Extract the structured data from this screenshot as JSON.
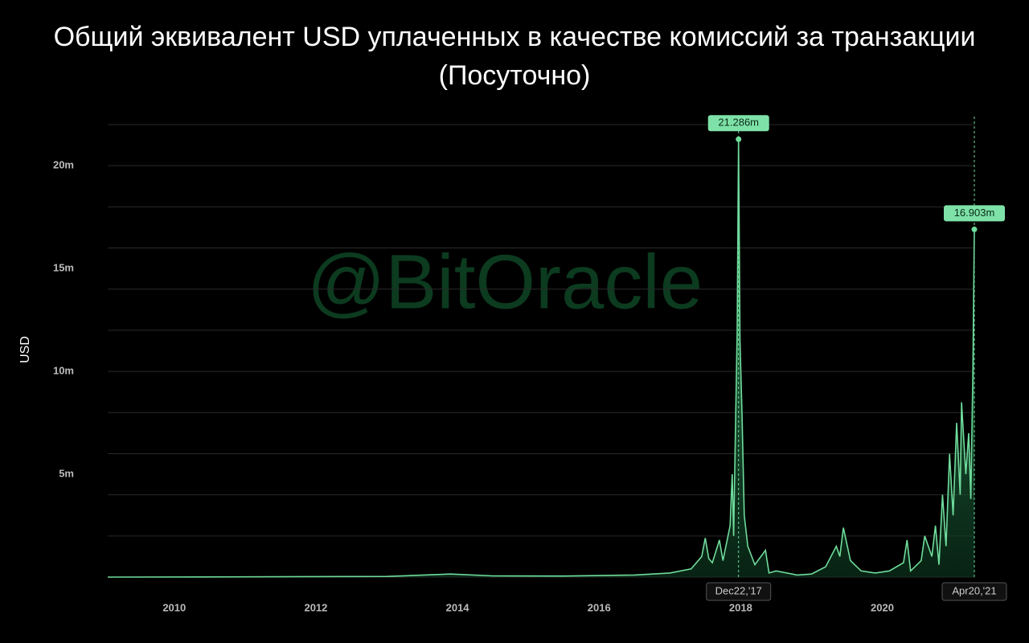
{
  "chart_data": {
    "type": "area",
    "title": "Общий эквивалент USD уплаченных в качестве комиссий за транзакции",
    "subtitle": "(Посуточно)",
    "y_label": "USD",
    "watermark": "@BitOracle",
    "xlim": [
      2009.06,
      2021.3
    ],
    "xticks": [
      2010,
      2012,
      2014,
      2016,
      2018,
      2020
    ],
    "ylim": [
      0,
      22000000
    ],
    "yticks": [
      {
        "value": 5000000,
        "label": "5m"
      },
      {
        "value": 10000000,
        "label": "10m"
      },
      {
        "value": 15000000,
        "label": "15m"
      },
      {
        "value": 20000000,
        "label": "20m"
      }
    ],
    "ygrid": [
      0,
      2000000,
      4000000,
      6000000,
      8000000,
      10000000,
      12000000,
      14000000,
      16000000,
      18000000,
      20000000,
      22000000
    ],
    "color": "#6fdc9c",
    "x": [
      2009.06,
      2011,
      2013,
      2013.9,
      2014.5,
      2015.5,
      2016.5,
      2017.0,
      2017.3,
      2017.45,
      2017.5,
      2017.55,
      2017.6,
      2017.7,
      2017.75,
      2017.85,
      2017.88,
      2017.9,
      2017.93,
      2017.95,
      2017.97,
      2017.99,
      2018.02,
      2018.05,
      2018.1,
      2018.2,
      2018.35,
      2018.4,
      2018.5,
      2018.8,
      2019.0,
      2019.2,
      2019.35,
      2019.4,
      2019.45,
      2019.55,
      2019.7,
      2019.9,
      2020.1,
      2020.3,
      2020.35,
      2020.4,
      2020.55,
      2020.6,
      2020.7,
      2020.75,
      2020.8,
      2020.85,
      2020.9,
      2020.95,
      2021.0,
      2021.05,
      2021.1,
      2021.12,
      2021.18,
      2021.22,
      2021.25,
      2021.28,
      2021.3
    ],
    "values": [
      0,
      10000,
      30000,
      150000,
      60000,
      50000,
      100000,
      200000,
      400000,
      1000000,
      1900000,
      900000,
      700000,
      1800000,
      800000,
      2500000,
      5000000,
      2000000,
      8000000,
      12000000,
      21286000,
      11500000,
      7800000,
      3000000,
      1500000,
      600000,
      1300000,
      200000,
      300000,
      100000,
      150000,
      500000,
      1500000,
      1000000,
      2400000,
      800000,
      300000,
      200000,
      300000,
      700000,
      1800000,
      300000,
      800000,
      2000000,
      1000000,
      2500000,
      600000,
      4000000,
      1500000,
      6000000,
      3000000,
      7500000,
      4000000,
      8500000,
      5000000,
      7000000,
      3800000,
      10000000,
      16903000
    ],
    "annotations": [
      {
        "x": 2017.97,
        "y": 21286000,
        "label": "21.286m",
        "date": "Dec22,'17"
      },
      {
        "x": 2021.3,
        "y": 16903000,
        "label": "16.903m",
        "date": "Apr20,'21"
      }
    ]
  }
}
